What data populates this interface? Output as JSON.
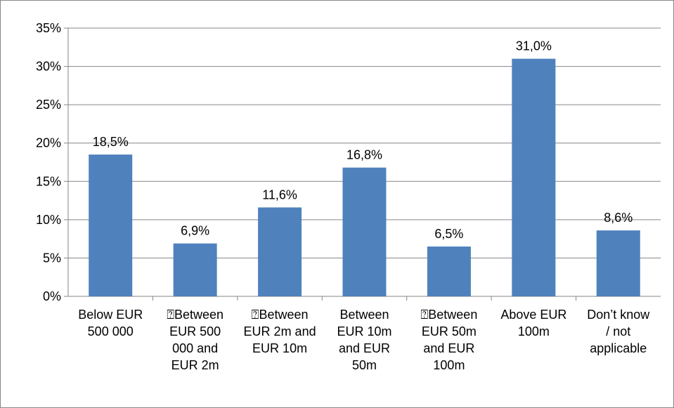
{
  "chart_data": {
    "type": "bar",
    "categories": [
      "Below EUR 500 000",
      "⍰Between EUR 500 000 and EUR 2m",
      "⍰Between EUR 2m and EUR 10m",
      "Between EUR 10m and EUR 50m",
      "⍰Between EUR 50m and EUR 100m",
      "Above EUR 100m",
      "Don’t know / not applicable"
    ],
    "values": [
      18.5,
      6.9,
      11.6,
      16.8,
      6.5,
      31.0,
      8.6
    ],
    "value_labels": [
      "18,5%",
      "6,9%",
      "11,6%",
      "16,8%",
      "6,5%",
      "31,0%",
      "8,6%"
    ],
    "color": "#4f81bd",
    "ylim": [
      0,
      35
    ],
    "yticks": [
      {
        "value": 0,
        "label": "0%"
      },
      {
        "value": 5,
        "label": "5%"
      },
      {
        "value": 10,
        "label": "10%"
      },
      {
        "value": 15,
        "label": "15%"
      },
      {
        "value": 20,
        "label": "20%"
      },
      {
        "value": 25,
        "label": "25%"
      },
      {
        "value": 30,
        "label": "30%"
      },
      {
        "value": 35,
        "label": "35%"
      }
    ],
    "grid": true
  }
}
